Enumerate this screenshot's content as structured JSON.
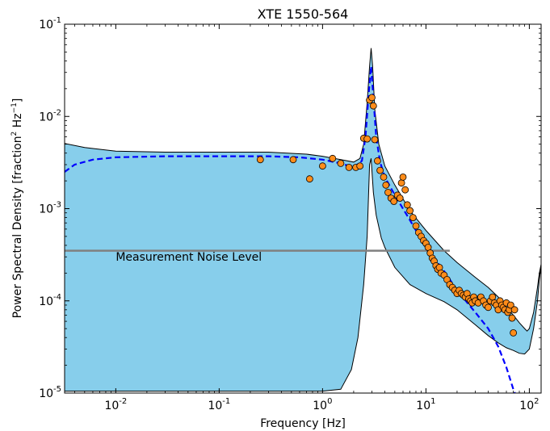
{
  "chart_data": {
    "type": "scatter",
    "title": "XTE 1550-564",
    "xlabel": "Frequency [Hz]",
    "ylabel_parts": [
      "Power Spectral Density [fraction",
      "2",
      "  Hz",
      "−1",
      "]"
    ],
    "xscale": "log",
    "yscale": "log",
    "xlim": [
      0.0032,
      130
    ],
    "ylim": [
      1e-05,
      0.1
    ],
    "x_ticks": [
      {
        "value": 0.01,
        "base": "10",
        "exp": "-2"
      },
      {
        "value": 0.1,
        "base": "10",
        "exp": "-1"
      },
      {
        "value": 1,
        "base": "10",
        "exp": "0"
      },
      {
        "value": 10,
        "base": "10",
        "exp": "1"
      },
      {
        "value": 100,
        "base": "10",
        "exp": "2"
      }
    ],
    "y_ticks": [
      {
        "value": 1e-05,
        "base": "10",
        "exp": "-5"
      },
      {
        "value": 0.0001,
        "base": "10",
        "exp": "-4"
      },
      {
        "value": 0.001,
        "base": "10",
        "exp": "-3"
      },
      {
        "value": 0.01,
        "base": "10",
        "exp": "-2"
      },
      {
        "value": 0.1,
        "base": "10",
        "exp": "-1"
      }
    ],
    "colors": {
      "band_fill": "#87ceeb",
      "model_line": "#0000ff",
      "points": "#ff8c1a",
      "noise_line": "#808080"
    },
    "annotation": {
      "text": "Measurement Noise Level",
      "x": 0.01,
      "y": 0.0003
    },
    "noise_level": {
      "y": 0.00035,
      "x_start": 0.0032,
      "x_end": 17
    },
    "band": {
      "upper": [
        [
          0.0032,
          0.0051
        ],
        [
          0.005,
          0.0046
        ],
        [
          0.01,
          0.0042
        ],
        [
          0.03,
          0.0041
        ],
        [
          0.1,
          0.0041
        ],
        [
          0.3,
          0.0041
        ],
        [
          0.7,
          0.0039
        ],
        [
          1.0,
          0.0037
        ],
        [
          1.5,
          0.0034
        ],
        [
          2.0,
          0.0032
        ],
        [
          2.3,
          0.0035
        ],
        [
          2.5,
          0.005
        ],
        [
          2.7,
          0.014
        ],
        [
          2.85,
          0.035
        ],
        [
          2.95,
          0.055
        ],
        [
          3.05,
          0.035
        ],
        [
          3.2,
          0.012
        ],
        [
          3.5,
          0.005
        ],
        [
          4.0,
          0.0029
        ],
        [
          5.0,
          0.0018
        ],
        [
          7.0,
          0.00095
        ],
        [
          10,
          0.00058
        ],
        [
          15,
          0.00035
        ],
        [
          20,
          0.00026
        ],
        [
          30,
          0.00018
        ],
        [
          40,
          0.00014
        ],
        [
          50,
          0.00011
        ],
        [
          60,
          8.5e-05
        ],
        [
          70,
          7e-05
        ],
        [
          80,
          5.8e-05
        ],
        [
          90,
          5e-05
        ],
        [
          95,
          4.7e-05
        ],
        [
          100,
          5e-05
        ],
        [
          110,
          7.5e-05
        ],
        [
          120,
          0.00014
        ],
        [
          125,
          0.0002
        ],
        [
          130,
          0.00025
        ]
      ],
      "lower": [
        [
          0.0032,
          1.05e-05
        ],
        [
          1.0,
          1.05e-05
        ],
        [
          1.5,
          1.1e-05
        ],
        [
          1.9,
          1.8e-05
        ],
        [
          2.2,
          4e-05
        ],
        [
          2.5,
          0.00015
        ],
        [
          2.7,
          0.0005
        ],
        [
          2.85,
          0.003
        ],
        [
          2.95,
          0.0035
        ],
        [
          3.1,
          0.0015
        ],
        [
          3.3,
          0.00085
        ],
        [
          3.7,
          0.00048
        ],
        [
          4.0,
          0.00038
        ],
        [
          5.0,
          0.00023
        ],
        [
          7.0,
          0.00015
        ],
        [
          10,
          0.00012
        ],
        [
          15,
          9.8e-05
        ],
        [
          20,
          8e-05
        ],
        [
          30,
          5.5e-05
        ],
        [
          40,
          4.2e-05
        ],
        [
          50,
          3.5e-05
        ],
        [
          60,
          3.1e-05
        ],
        [
          70,
          2.9e-05
        ],
        [
          80,
          2.7e-05
        ],
        [
          90,
          2.65e-05
        ],
        [
          100,
          3e-05
        ],
        [
          110,
          5e-05
        ],
        [
          120,
          0.0001
        ],
        [
          125,
          0.00017
        ],
        [
          130,
          0.00024
        ]
      ]
    },
    "model": [
      [
        0.0032,
        0.0025
      ],
      [
        0.004,
        0.003
      ],
      [
        0.006,
        0.0034
      ],
      [
        0.01,
        0.0036
      ],
      [
        0.03,
        0.0037
      ],
      [
        0.1,
        0.0037
      ],
      [
        0.3,
        0.0037
      ],
      [
        0.6,
        0.0036
      ],
      [
        1.0,
        0.0034
      ],
      [
        1.5,
        0.0031
      ],
      [
        2.0,
        0.0028
      ],
      [
        2.4,
        0.0033
      ],
      [
        2.6,
        0.006
      ],
      [
        2.8,
        0.018
      ],
      [
        2.95,
        0.035
      ],
      [
        3.1,
        0.016
      ],
      [
        3.3,
        0.006
      ],
      [
        3.6,
        0.0032
      ],
      [
        4.0,
        0.0022
      ],
      [
        5.0,
        0.0014
      ],
      [
        7.0,
        0.00075
      ],
      [
        10,
        0.00038
      ],
      [
        15,
        0.00021
      ],
      [
        20,
        0.00013
      ],
      [
        30,
        7.5e-05
      ],
      [
        40,
        5e-05
      ],
      [
        50,
        3.2e-05
      ],
      [
        60,
        1.9e-05
      ],
      [
        70,
        1.1e-05
      ],
      [
        80,
        7.5e-06
      ]
    ],
    "points": [
      [
        0.25,
        0.0034
      ],
      [
        0.52,
        0.0034
      ],
      [
        0.75,
        0.0021
      ],
      [
        1.0,
        0.0029
      ],
      [
        1.25,
        0.0035
      ],
      [
        1.5,
        0.0031
      ],
      [
        1.8,
        0.0028
      ],
      [
        2.1,
        0.0028
      ],
      [
        2.3,
        0.0029
      ],
      [
        2.5,
        0.0058
      ],
      [
        2.7,
        0.0057
      ],
      [
        2.85,
        0.015
      ],
      [
        3.0,
        0.016
      ],
      [
        3.1,
        0.013
      ],
      [
        3.2,
        0.0056
      ],
      [
        3.4,
        0.0033
      ],
      [
        3.6,
        0.0026
      ],
      [
        3.9,
        0.0022
      ],
      [
        4.1,
        0.0018
      ],
      [
        4.3,
        0.0015
      ],
      [
        4.6,
        0.0013
      ],
      [
        4.9,
        0.0012
      ],
      [
        5.3,
        0.0014
      ],
      [
        5.6,
        0.0013
      ],
      [
        5.8,
        0.0019
      ],
      [
        6.0,
        0.0022
      ],
      [
        6.3,
        0.0016
      ],
      [
        6.6,
        0.0011
      ],
      [
        7.0,
        0.00095
      ],
      [
        7.5,
        0.0008
      ],
      [
        8.0,
        0.00065
      ],
      [
        8.5,
        0.00055
      ],
      [
        9.0,
        0.0005
      ],
      [
        9.5,
        0.00045
      ],
      [
        10,
        0.00042
      ],
      [
        10.5,
        0.00038
      ],
      [
        11,
        0.00033
      ],
      [
        11.5,
        0.00029
      ],
      [
        12,
        0.00027
      ],
      [
        12.5,
        0.00024
      ],
      [
        13,
        0.00022
      ],
      [
        13.5,
        0.00023
      ],
      [
        14,
        0.0002
      ],
      [
        15,
        0.00019
      ],
      [
        16,
        0.00017
      ],
      [
        17,
        0.00015
      ],
      [
        18,
        0.00014
      ],
      [
        19,
        0.00013
      ],
      [
        20,
        0.00012
      ],
      [
        21,
        0.00013
      ],
      [
        22,
        0.00012
      ],
      [
        23,
        0.000115
      ],
      [
        24,
        0.00011
      ],
      [
        25,
        0.00012
      ],
      [
        26,
        0.000105
      ],
      [
        27,
        0.0001
      ],
      [
        28,
        9.5e-05
      ],
      [
        29,
        0.00011
      ],
      [
        30,
        0.0001
      ],
      [
        32,
        9.5e-05
      ],
      [
        34,
        0.00011
      ],
      [
        36,
        0.0001
      ],
      [
        38,
        9e-05
      ],
      [
        40,
        8.5e-05
      ],
      [
        42,
        0.0001
      ],
      [
        44,
        0.00011
      ],
      [
        46,
        9.5e-05
      ],
      [
        48,
        9e-05
      ],
      [
        50,
        8e-05
      ],
      [
        52,
        0.0001
      ],
      [
        54,
        9e-05
      ],
      [
        56,
        8.5e-05
      ],
      [
        58,
        8e-05
      ],
      [
        60,
        9.5e-05
      ],
      [
        62,
        7.5e-05
      ],
      [
        64,
        8e-05
      ],
      [
        66,
        9e-05
      ],
      [
        68,
        6.5e-05
      ],
      [
        70,
        4.5e-05
      ],
      [
        72,
        8e-05
      ]
    ]
  }
}
